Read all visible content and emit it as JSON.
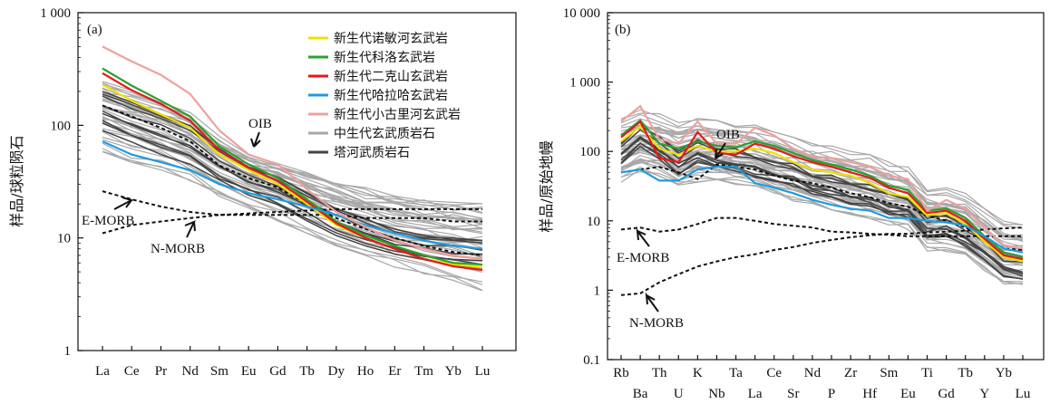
{
  "chart_data": [
    {
      "type": "line",
      "panel_label": "(a)",
      "ylabel": "样品/球粒陨石",
      "yscale": "log",
      "ylim": [
        1,
        1000
      ],
      "yticks": [
        {
          "v": 1,
          "t": "1"
        },
        {
          "v": 10,
          "t": "10"
        },
        {
          "v": 100,
          "t": "100"
        },
        {
          "v": 1000,
          "t": "1 000"
        }
      ],
      "categories": [
        "La",
        "Ce",
        "Pr",
        "Nd",
        "Sm",
        "Eu",
        "Gd",
        "Tb",
        "Dy",
        "Ho",
        "Er",
        "Tm",
        "Yb",
        "Lu"
      ],
      "legend": [
        {
          "label": "新生代诺敏河玄武岩",
          "color": "#f0e000"
        },
        {
          "label": "新生代科洛玄武岩",
          "color": "#2ca02c"
        },
        {
          "label": "新生代二克山玄武岩",
          "color": "#e31a1c"
        },
        {
          "label": "新生代哈拉哈玄武岩",
          "color": "#1f9bde"
        },
        {
          "label": "新生代小古里河玄武岩",
          "color": "#f0a0a0"
        },
        {
          "label": "中生代玄武质岩石",
          "color": "#a8a8a8"
        },
        {
          "label": "塔河武质岩石",
          "color": "#444444"
        }
      ],
      "series": [
        {
          "name": "新生代诺敏河玄武岩",
          "color": "#f0e000",
          "values": [
            230,
            165,
            125,
            95,
            55,
            40,
            30,
            20,
            13,
            10,
            8,
            6.5,
            5.8,
            5.5
          ]
        },
        {
          "name": "新生代科洛玄武岩",
          "color": "#2ca02c",
          "values": [
            320,
            225,
            165,
            120,
            65,
            45,
            34,
            22,
            14,
            10.5,
            8.5,
            7,
            6,
            5.8
          ]
        },
        {
          "name": "新生代二克山玄武岩",
          "color": "#e31a1c",
          "values": [
            290,
            205,
            155,
            110,
            60,
            42,
            32,
            21,
            13.5,
            10,
            8,
            6.5,
            5.6,
            5.2
          ]
        },
        {
          "name": "新生代哈拉哈玄武岩",
          "color": "#1f9bde",
          "values": [
            72,
            55,
            47,
            40,
            30,
            25,
            22,
            19,
            16,
            13,
            11,
            9.5,
            8.5,
            8
          ]
        },
        {
          "name": "新生代小古里河玄武岩",
          "color": "#f0a0a0",
          "values": [
            500,
            370,
            280,
            190,
            90,
            55,
            45,
            27,
            17,
            12.5,
            9.5,
            8,
            7,
            6.5
          ]
        }
      ],
      "gray_band": {
        "upper": [
          260,
          210,
          170,
          130,
          80,
          58,
          50,
          40,
          33,
          28,
          25,
          23,
          22,
          22
        ],
        "lower": [
          55,
          46,
          38,
          31,
          23,
          18,
          14,
          11,
          8.5,
          7,
          5.5,
          4.8,
          4.2,
          3.4
        ]
      },
      "dark_band": {
        "upper": [
          200,
          160,
          125,
          100,
          62,
          44,
          36,
          26,
          19,
          15,
          12,
          10.5,
          10,
          9.5
        ],
        "lower": [
          90,
          70,
          55,
          45,
          31,
          24,
          19,
          14,
          10.5,
          8.5,
          7,
          6.2,
          5.7,
          5.5
        ]
      },
      "reference": [
        {
          "label": "OIB",
          "values": [
            150,
            120,
            95,
            72,
            44,
            34,
            28,
            20,
            15,
            12,
            10,
            8.5,
            7.5,
            7
          ]
        },
        {
          "label": "E-MORB",
          "values": [
            26,
            22,
            19,
            17,
            16,
            16,
            16,
            16,
            16,
            15,
            15,
            15,
            14,
            14
          ]
        },
        {
          "label": "N-MORB",
          "values": [
            11,
            13,
            14,
            15,
            16,
            16.5,
            17,
            17.5,
            18,
            18,
            18,
            18,
            18,
            18
          ]
        }
      ]
    },
    {
      "type": "line",
      "panel_label": "(b)",
      "ylabel": "样品/原始地幔",
      "yscale": "log",
      "ylim": [
        0.1,
        10000
      ],
      "yticks": [
        {
          "v": 0.1,
          "t": "0.1"
        },
        {
          "v": 1,
          "t": "1"
        },
        {
          "v": 10,
          "t": "10"
        },
        {
          "v": 100,
          "t": "100"
        },
        {
          "v": 1000,
          "t": "1 000"
        },
        {
          "v": 10000,
          "t": "10 000"
        }
      ],
      "categories": [
        "Rb",
        "Ba",
        "Th",
        "U",
        "K",
        "Nb",
        "Ta",
        "La",
        "Ce",
        "Sr",
        "Nd",
        "P",
        "Zr",
        "Hf",
        "Sm",
        "Eu",
        "Ti",
        "Gd",
        "Tb",
        "Y",
        "Yb",
        "Lu"
      ],
      "series": [
        {
          "name": "新生代诺敏河玄武岩",
          "color": "#f0e000",
          "values": [
            140,
            230,
            110,
            90,
            120,
            100,
            100,
            110,
            95,
            70,
            55,
            50,
            45,
            35,
            25,
            22,
            12,
            13,
            9,
            5,
            3,
            2.6
          ]
        },
        {
          "name": "新生代科洛玄武岩",
          "color": "#2ca02c",
          "values": [
            170,
            280,
            130,
            110,
            140,
            120,
            115,
            140,
            120,
            95,
            75,
            65,
            55,
            45,
            32,
            28,
            14,
            15,
            11,
            6,
            3.5,
            3
          ]
        },
        {
          "name": "新生代二克山玄武岩",
          "color": "#e31a1c",
          "values": [
            160,
            270,
            80,
            70,
            190,
            95,
            90,
            130,
            110,
            85,
            70,
            60,
            50,
            42,
            30,
            25,
            13,
            14,
            10,
            5.5,
            3.2,
            2.8
          ]
        },
        {
          "name": "新生代哈拉哈玄武岩",
          "color": "#1f9bde",
          "values": [
            50,
            55,
            38,
            38,
            55,
            60,
            60,
            35,
            30,
            25,
            20,
            17,
            15,
            14,
            11,
            11,
            10,
            9.5,
            8.5,
            6,
            4,
            3.5
          ]
        },
        {
          "name": "新生代小古里河玄武岩",
          "color": "#f0a0a0",
          "values": [
            270,
            450,
            150,
            130,
            270,
            130,
            130,
            220,
            170,
            110,
            85,
            80,
            70,
            60,
            45,
            40,
            14,
            20,
            15,
            8,
            4.5,
            4
          ]
        }
      ],
      "gray_band": {
        "upper": [
          300,
          400,
          350,
          260,
          300,
          280,
          260,
          240,
          190,
          160,
          130,
          120,
          100,
          90,
          70,
          60,
          30,
          30,
          25,
          15,
          10,
          9
        ]
      },
      "dark_band": {
        "upper": [
          170,
          300,
          200,
          120,
          180,
          140,
          130,
          110,
          90,
          80,
          60,
          55,
          45,
          40,
          32,
          28,
          14,
          15,
          11,
          7,
          4,
          3.5
        ]
      },
      "reference": [
        {
          "label": "OIB",
          "values": [
            50,
            55,
            60,
            50,
            40,
            65,
            60,
            55,
            45,
            38,
            35,
            30,
            25,
            22,
            18,
            16,
            12,
            10,
            8,
            6,
            4,
            3.8
          ]
        },
        {
          "label": "E-MORB",
          "values": [
            7.5,
            8,
            7,
            7.5,
            9,
            11,
            11,
            10,
            9,
            8.5,
            8,
            7,
            6.8,
            6.5,
            6.3,
            6,
            6,
            6,
            6,
            6,
            6,
            6
          ]
        },
        {
          "label": "N-MORB",
          "values": [
            0.85,
            0.9,
            1.3,
            1.7,
            2.2,
            2.6,
            3,
            3.3,
            3.8,
            4.2,
            4.8,
            5.3,
            5.8,
            6.2,
            6.5,
            6.5,
            6.8,
            7,
            7.2,
            7.5,
            7.8,
            8
          ]
        }
      ]
    }
  ],
  "annotations_a": {
    "oib": "OIB",
    "emorb": "E-MORB",
    "nmorb": "N-MORB"
  },
  "annotations_b": {
    "oib": "OIB",
    "emorb": "E-MORB",
    "nmorb": "N-MORB"
  }
}
